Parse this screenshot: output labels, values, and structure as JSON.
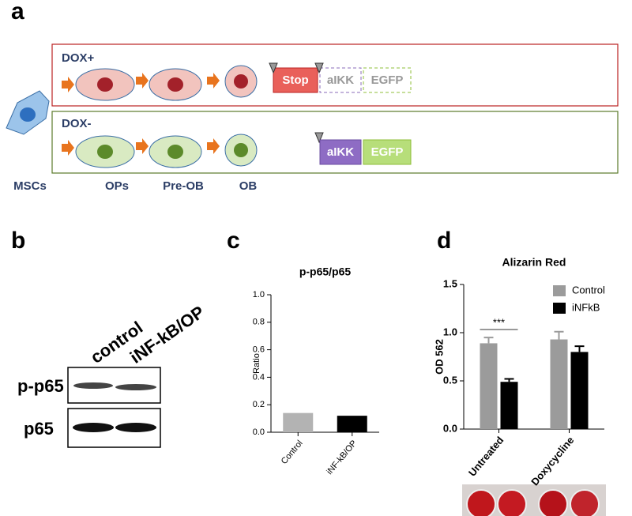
{
  "panel_labels": [
    "a",
    "b",
    "c",
    "d"
  ],
  "diagram": {
    "conditions": [
      "DOX+",
      "DOX-"
    ],
    "cell_labels": [
      "MSCs",
      "OPs",
      "Pre-OB",
      "OB"
    ],
    "constructs_dox_plus": [
      "Stop",
      "aIKK",
      "EGFP"
    ],
    "constructs_dox_minus": [
      "aIKK",
      "EGFP"
    ]
  },
  "blot": {
    "lanes": [
      "control",
      "iNF-kB/OP"
    ],
    "rows": [
      "p-p65",
      "p65"
    ]
  },
  "chart_data": [
    {
      "type": "bar",
      "title": "p-p65/p65",
      "y_label": "Ratio",
      "categories": [
        "Control",
        "iNF-kB/OP"
      ],
      "values": [
        0.14,
        0.12
      ],
      "colors": [
        "#b3b3b3",
        "#000000"
      ],
      "ylim": [
        0,
        1
      ],
      "yticks": [
        {
          "value": 0,
          "label": "0.0"
        },
        0.2,
        0.4,
        0.6,
        0.8,
        {
          "value": 1,
          "label": "1.0"
        }
      ],
      "grid": false
    },
    {
      "type": "bar",
      "title": "Alizarin Red",
      "y_label": "OD 562",
      "categories": [
        "Untreated",
        "Doxycycline"
      ],
      "series": [
        {
          "name": "Control",
          "color": "#9b9b9b",
          "values": [
            0.89,
            0.93
          ],
          "errors": [
            0.06,
            0.08
          ]
        },
        {
          "name": "iNFkB",
          "color": "#000000",
          "values": [
            0.49,
            0.8
          ],
          "errors": [
            0.03,
            0.06
          ]
        }
      ],
      "ylim": [
        0,
        1.5
      ],
      "yticks": [
        {
          "value": 0,
          "label": "0.0"
        },
        0.5,
        {
          "value": 1,
          "label": "1.0"
        },
        1.5
      ],
      "annotation": "***",
      "legend": "upper right",
      "grid": false
    }
  ]
}
